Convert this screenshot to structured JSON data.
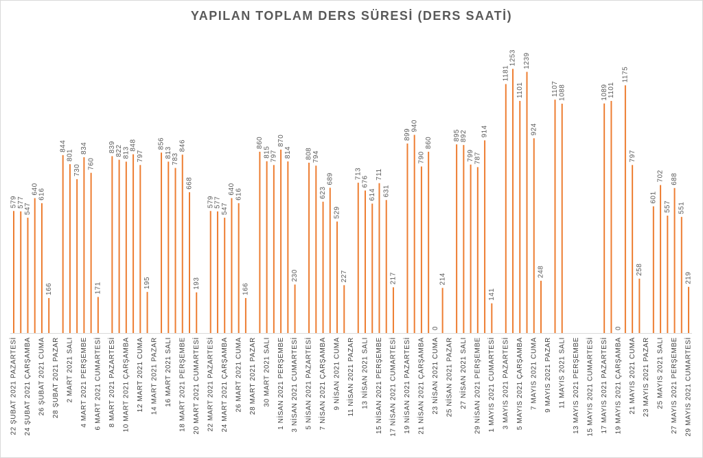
{
  "chart_data": {
    "type": "bar",
    "title": "YAPILAN TOPLAM DERS SÜRESİ (DERS SAATİ)",
    "color": "#ed7d31",
    "categories": [
      "22 ŞUBAT 2021 PAZARTESİ",
      null,
      "24 ŞUBAT 2021 ÇARŞAMBA",
      null,
      "26 ŞUBAT 2021 CUMA",
      null,
      "28 ŞUBAT 2021 PAZAR",
      null,
      "2 MART 2021 SALI",
      null,
      "4 MART 2021 PERŞEMBE",
      null,
      "6 MART 2021 CUMARTESİ",
      null,
      "8 MART 2021 PAZARTESİ",
      null,
      "10 MART 2021 ÇARŞAMBA",
      null,
      "12 MART 2021 CUMA",
      null,
      "14 MART 2021 PAZAR",
      null,
      "16 MART 2021 SALI",
      null,
      "18 MART 2021 PERŞEMBE",
      null,
      "20 MART 2021 CUMARTESİ",
      null,
      "22 MART 2021 PAZARTESİ",
      null,
      "24 MART 2021 ÇARŞAMBA",
      null,
      "26 MART 2021 CUMA",
      null,
      "28 MART 2021 PAZAR",
      null,
      "30 MART 2021 SALI",
      null,
      "1 NİSAN 2021 PERŞEMBE",
      null,
      "3 NİSAN 2021 CUMARTESİ",
      null,
      "5 NİSAN 2021 PAZARTESİ",
      null,
      "7 NİSAN 2021 ÇARŞAMBA",
      null,
      "9 NİSAN 2021 CUMA",
      null,
      "11 NİSAN 2021 PAZAR",
      null,
      "13 NİSAN 2021 SALI",
      null,
      "15 NİSAN 2021 PERŞEMBE",
      null,
      "17 NİSAN 2021 CUMARTESİ",
      null,
      "19 NİSAN 2021 PAZARTESİ",
      null,
      "21 NİSAN 2021 ÇARŞAMBA",
      null,
      "23 NİSAN 2021 CUMA",
      null,
      "25 NİSAN 2021 PAZAR",
      null,
      "27 NİSAN 2021 SALI",
      null,
      "29 NİSAN 2021 PERŞEMBE",
      null,
      "1 MAYIS 2021 CUMARTESİ",
      null,
      "3 MAYIS 2021 PAZARTESİ",
      null,
      "5 MAYIS 2021 ÇARŞAMBA",
      null,
      "7 MAYIS 2021 CUMA",
      null,
      "9 MAYIS 2021 PAZAR",
      null,
      "11 MAYIS 2021 SALI",
      null,
      "13 MAYIS 2021 PERŞEMBE",
      null,
      "15 MAYIS 2021 CUMARTESİ",
      null,
      "17 MAYIS 2021 PAZARTESİ",
      null,
      "19 MAYIS 2021 ÇARŞAMBA",
      null,
      "21 MAYIS 2021 CUMA",
      null,
      "23 MAYIS 2021 PAZAR",
      null,
      "25 MAYIS 2021 SALI",
      null,
      "27 MAYIS 2021 PERŞEMBE",
      null,
      "29 MAYIS 2021 CUMARTESİ"
    ],
    "values": [
      579,
      577,
      547,
      640,
      616,
      166,
      null,
      844,
      801,
      730,
      834,
      760,
      171,
      null,
      839,
      822,
      813,
      848,
      797,
      195,
      null,
      856,
      813,
      783,
      846,
      668,
      193,
      null,
      579,
      577,
      547,
      640,
      616,
      166,
      null,
      860,
      815,
      797,
      870,
      814,
      230,
      null,
      808,
      794,
      623,
      689,
      529,
      227,
      null,
      713,
      676,
      614,
      711,
      631,
      217,
      null,
      899,
      940,
      790,
      860,
      0,
      214,
      null,
      895,
      892,
      799,
      787,
      914,
      141,
      null,
      1181,
      1253,
      1101,
      1239,
      924,
      248,
      null,
      1107,
      1088,
      null,
      null,
      null,
      null,
      null,
      1089,
      1101,
      0,
      1175,
      797,
      258,
      null,
      601,
      702,
      557,
      688,
      551,
      219
    ]
  }
}
